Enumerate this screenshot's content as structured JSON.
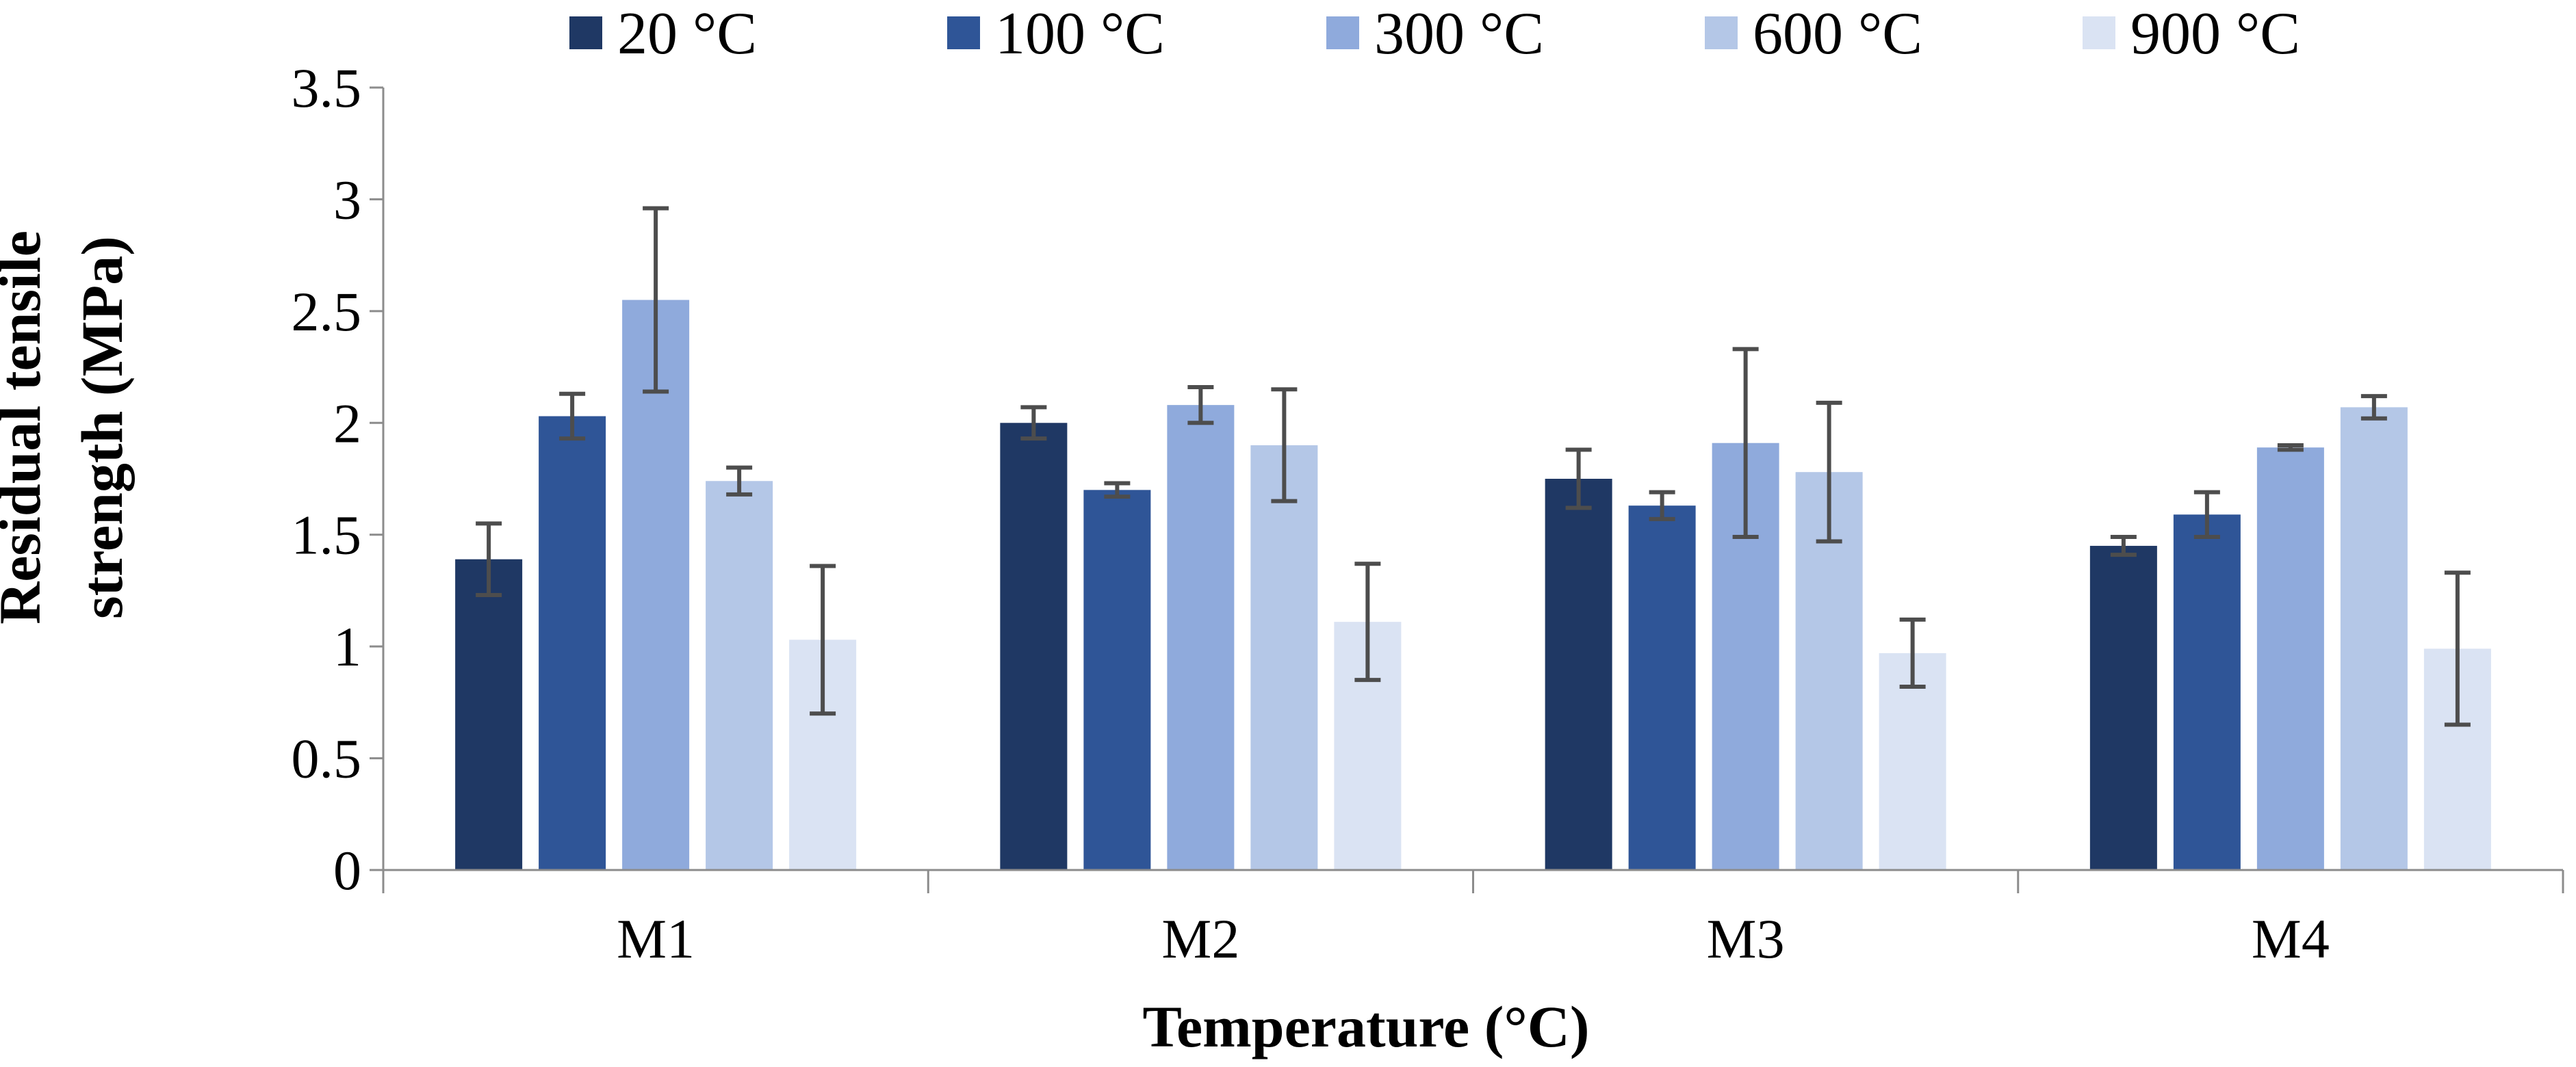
{
  "chart_data": {
    "type": "bar",
    "title": "",
    "xlabel": "Temperature (°C)",
    "ylabel_lines": [
      "Residual tensile",
      "strength (MPa)"
    ],
    "categories": [
      "M1",
      "M2",
      "M3",
      "M4"
    ],
    "ylim": [
      0,
      3.5
    ],
    "yticks": [
      "0",
      "0.5",
      "1",
      "1.5",
      "2",
      "2.5",
      "3",
      "3.5"
    ],
    "grid": false,
    "legend_position": "top",
    "error_bars": true,
    "series": [
      {
        "name": "20 °C",
        "color": "#1f3864",
        "values": [
          1.39,
          2.0,
          1.75,
          1.45
        ],
        "errors": [
          0.16,
          0.07,
          0.13,
          0.04
        ]
      },
      {
        "name": "100 °C",
        "color": "#2f5597",
        "values": [
          2.03,
          1.7,
          1.63,
          1.59
        ],
        "errors": [
          0.1,
          0.03,
          0.06,
          0.1
        ]
      },
      {
        "name": "300 °C",
        "color": "#8faadc",
        "values": [
          2.55,
          2.08,
          1.91,
          1.89
        ],
        "errors": [
          0.41,
          0.08,
          0.42,
          0.01
        ]
      },
      {
        "name": "600 °C",
        "color": "#b4c7e7",
        "values": [
          1.74,
          1.9,
          1.78,
          2.07
        ],
        "errors": [
          0.06,
          0.25,
          0.31,
          0.05
        ]
      },
      {
        "name": "900 °C",
        "color": "#dae3f3",
        "values": [
          1.03,
          1.11,
          0.97,
          0.99
        ],
        "errors": [
          0.33,
          0.26,
          0.15,
          0.34
        ]
      }
    ]
  }
}
